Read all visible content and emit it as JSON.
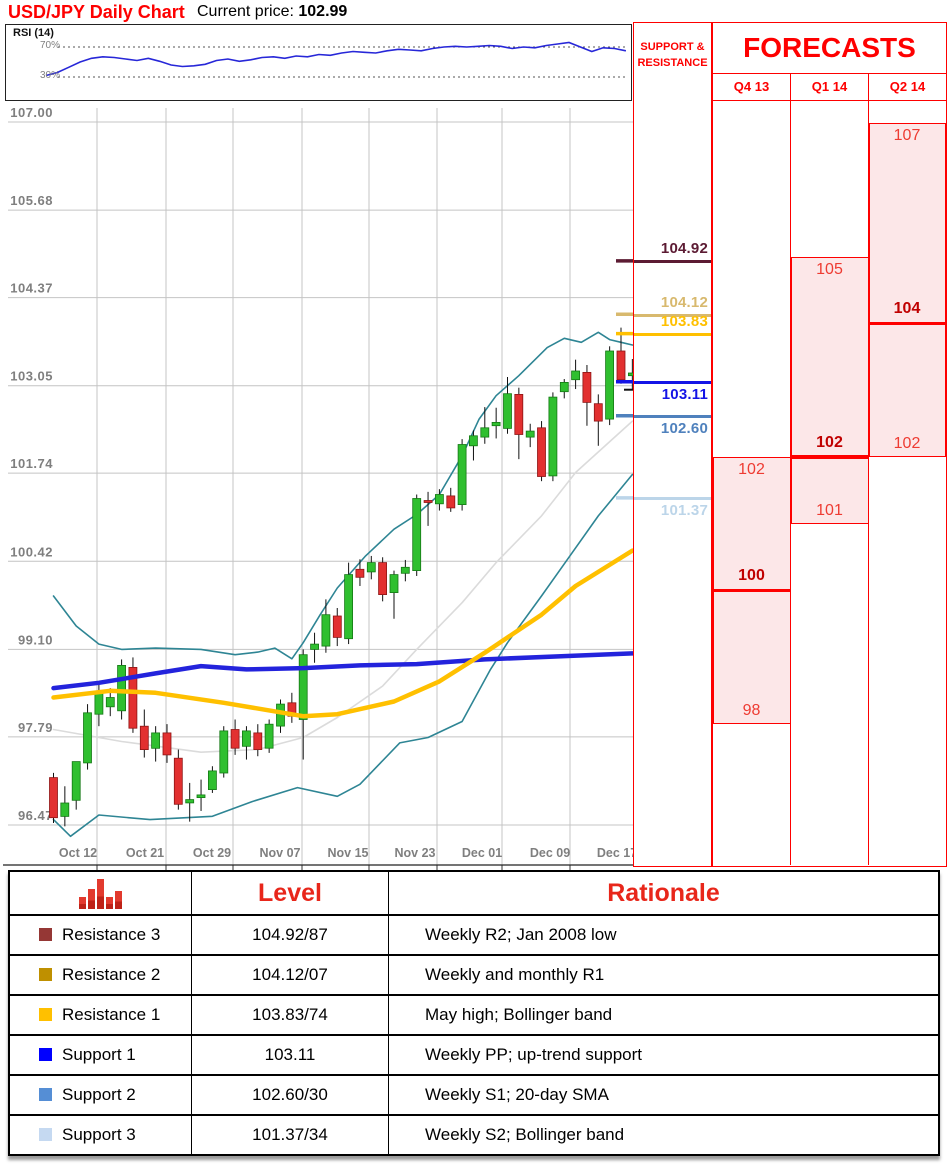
{
  "header": {
    "title": "USD/JPY Daily Chart",
    "current_price_label": "Current price:",
    "current_price": "102.99"
  },
  "chart_data": [
    {
      "type": "candlestick",
      "title": "USD/JPY Daily Chart",
      "ylim": [
        96.47,
        107.0
      ],
      "grid": true,
      "y_tick_labels": [
        "107.00",
        "105.68",
        "104.37",
        "103.05",
        "101.74",
        "100.42",
        "99.10",
        "97.79",
        "96.47"
      ],
      "y_tick_values": [
        107.0,
        105.68,
        104.37,
        103.05,
        101.74,
        100.42,
        99.1,
        97.79,
        96.47
      ],
      "x_tick_labels": [
        "Oct 12",
        "Oct 21",
        "Oct 29",
        "Nov 07",
        "Nov 15",
        "Nov 23",
        "Dec 01",
        "Dec 09",
        "Dec 17"
      ],
      "current_price": 102.99,
      "candles": [
        [
          97.18,
          97.25,
          96.5,
          96.58
        ],
        [
          96.6,
          97.05,
          96.45,
          96.8
        ],
        [
          96.84,
          97.15,
          96.7,
          97.42
        ],
        [
          97.4,
          98.28,
          97.3,
          98.15
        ],
        [
          98.13,
          98.57,
          97.95,
          98.45
        ],
        [
          98.24,
          98.52,
          98.1,
          98.38
        ],
        [
          98.18,
          98.95,
          98.05,
          98.86
        ],
        [
          98.83,
          98.98,
          97.85,
          97.92
        ],
        [
          97.95,
          98.2,
          97.48,
          97.6
        ],
        [
          97.62,
          97.95,
          97.42,
          97.85
        ],
        [
          97.85,
          97.98,
          97.4,
          97.52
        ],
        [
          97.47,
          97.6,
          96.7,
          96.78
        ],
        [
          96.8,
          97.1,
          96.52,
          96.85
        ],
        [
          96.88,
          97.15,
          96.68,
          96.92
        ],
        [
          97.0,
          97.35,
          96.95,
          97.28
        ],
        [
          97.25,
          97.95,
          97.18,
          97.88
        ],
        [
          97.9,
          98.05,
          97.52,
          97.62
        ],
        [
          97.65,
          97.95,
          97.45,
          97.88
        ],
        [
          97.85,
          97.98,
          97.5,
          97.6
        ],
        [
          97.62,
          98.05,
          97.55,
          97.98
        ],
        [
          97.95,
          98.35,
          97.85,
          98.28
        ],
        [
          98.3,
          98.45,
          98.0,
          98.1
        ],
        [
          98.05,
          99.1,
          97.45,
          99.02
        ],
        [
          99.1,
          99.35,
          98.9,
          99.18
        ],
        [
          99.15,
          99.85,
          99.05,
          99.62
        ],
        [
          99.6,
          99.72,
          99.15,
          99.28
        ],
        [
          99.26,
          100.4,
          99.18,
          100.22
        ],
        [
          100.3,
          100.45,
          100.05,
          100.18
        ],
        [
          100.26,
          100.5,
          100.15,
          100.4
        ],
        [
          100.4,
          100.48,
          99.82,
          99.92
        ],
        [
          99.95,
          100.28,
          99.56,
          100.22
        ],
        [
          100.24,
          100.44,
          100.12,
          100.33
        ],
        [
          100.28,
          101.42,
          100.2,
          101.36
        ],
        [
          101.33,
          101.46,
          100.95,
          101.3
        ],
        [
          101.28,
          101.5,
          101.18,
          101.42
        ],
        [
          101.4,
          101.52,
          101.16,
          101.22
        ],
        [
          101.27,
          102.25,
          101.18,
          102.17
        ],
        [
          102.15,
          102.38,
          101.93,
          102.3
        ],
        [
          102.28,
          102.73,
          102.18,
          102.42
        ],
        [
          102.45,
          102.72,
          102.26,
          102.5
        ],
        [
          102.41,
          103.18,
          102.33,
          102.93
        ],
        [
          102.92,
          103.02,
          101.95,
          102.32
        ],
        [
          102.28,
          102.48,
          102.13,
          102.37
        ],
        [
          102.42,
          102.52,
          101.62,
          101.69
        ],
        [
          101.7,
          102.95,
          101.62,
          102.88
        ],
        [
          102.96,
          103.15,
          102.86,
          103.1
        ],
        [
          103.14,
          103.44,
          103.0,
          103.27
        ],
        [
          103.25,
          103.36,
          102.45,
          102.8
        ],
        [
          102.78,
          102.92,
          102.15,
          102.52
        ],
        [
          102.55,
          103.64,
          102.46,
          103.57
        ],
        [
          103.57,
          103.92,
          103.08,
          103.14
        ],
        [
          103.2,
          103.45,
          102.98,
          103.24
        ],
        [
          103.25,
          103.32,
          102.6,
          102.99
        ]
      ],
      "candle_colors": {
        "up": "#2FBF2F",
        "up_stroke": "#147814",
        "down": "#E23030",
        "down_stroke": "#8E1414"
      },
      "overlays": [
        {
          "name": "ma-blue",
          "color": "#2323DC",
          "width": 4.5,
          "points": [
            [
              0,
              98.52
            ],
            [
              4,
              98.6
            ],
            [
              9,
              98.74
            ],
            [
              13,
              98.85
            ],
            [
              17,
              98.8
            ],
            [
              22,
              98.82
            ],
            [
              27,
              98.86
            ],
            [
              32,
              98.88
            ],
            [
              38,
              98.95
            ],
            [
              45,
              99.0
            ],
            [
              51,
              99.04
            ]
          ]
        },
        {
          "name": "ma-yellow",
          "color": "#FFC000",
          "width": 4.5,
          "points": [
            [
              0,
              98.38
            ],
            [
              5,
              98.48
            ],
            [
              9,
              98.45
            ],
            [
              15,
              98.3
            ],
            [
              22,
              98.1
            ],
            [
              25,
              98.13
            ],
            [
              30,
              98.32
            ],
            [
              34,
              98.62
            ],
            [
              38,
              99.05
            ],
            [
              43,
              99.62
            ],
            [
              46,
              100.05
            ],
            [
              51,
              100.58
            ]
          ]
        },
        {
          "name": "sma20-gray",
          "color": "#DBDBDB",
          "width": 1.6,
          "points": [
            [
              0,
              97.9
            ],
            [
              6,
              97.72
            ],
            [
              13,
              97.56
            ],
            [
              18,
              97.6
            ],
            [
              22,
              97.78
            ],
            [
              25,
              98.08
            ],
            [
              29,
              98.55
            ],
            [
              32,
              99.1
            ],
            [
              36,
              99.8
            ],
            [
              39,
              100.4
            ],
            [
              43,
              101.1
            ],
            [
              46,
              101.75
            ],
            [
              51,
              102.52
            ]
          ]
        },
        {
          "name": "bollinger-upper",
          "color": "#2E8594",
          "width": 1.6,
          "points": [
            [
              0,
              99.9
            ],
            [
              2,
              99.45
            ],
            [
              4,
              99.18
            ],
            [
              6,
              99.1
            ],
            [
              9,
              99.12
            ],
            [
              13,
              99.1
            ],
            [
              16,
              99.02
            ],
            [
              18,
              99.06
            ],
            [
              19.5,
              99.12
            ],
            [
              21,
              98.96
            ],
            [
              22,
              99.2
            ],
            [
              23.5,
              99.62
            ],
            [
              25,
              100.02
            ],
            [
              27.5,
              100.5
            ],
            [
              30,
              100.9
            ],
            [
              32,
              101.12
            ],
            [
              34,
              101.42
            ],
            [
              36,
              102.0
            ],
            [
              37.5,
              102.55
            ],
            [
              39,
              102.9
            ],
            [
              41,
              103.2
            ],
            [
              43.5,
              103.62
            ],
            [
              45,
              103.76
            ],
            [
              46.5,
              103.7
            ],
            [
              48,
              103.85
            ],
            [
              49,
              103.74
            ],
            [
              50,
              103.7
            ],
            [
              51,
              103.66
            ]
          ]
        },
        {
          "name": "bollinger-lower",
          "color": "#2E8594",
          "width": 1.6,
          "points": [
            [
              0,
              96.55
            ],
            [
              1.5,
              96.3
            ],
            [
              4,
              96.62
            ],
            [
              8.5,
              96.55
            ],
            [
              14,
              96.6
            ],
            [
              17.5,
              96.82
            ],
            [
              21.5,
              97.03
            ],
            [
              25,
              96.9
            ],
            [
              27,
              97.08
            ],
            [
              30.5,
              97.7
            ],
            [
              33,
              97.78
            ],
            [
              36,
              98.02
            ],
            [
              38.5,
              98.8
            ],
            [
              40,
              99.2
            ],
            [
              43,
              99.9
            ],
            [
              45.5,
              100.5
            ],
            [
              48,
              101.1
            ],
            [
              51,
              101.72
            ]
          ]
        }
      ]
    },
    {
      "type": "line",
      "title": "RSI (14)",
      "upper_gridline_label": "70%",
      "lower_gridline_label": "30%",
      "upper_gridline": 70,
      "lower_gridline": 30,
      "ylim": [
        0,
        100
      ],
      "color": "#2727D8",
      "values": [
        32,
        36,
        43,
        50,
        55,
        57,
        56,
        54,
        52,
        55,
        51,
        46,
        44,
        45,
        47,
        52,
        54,
        51,
        53,
        56,
        57,
        55,
        58,
        57,
        60,
        59,
        62,
        64,
        63,
        62,
        65,
        67,
        66,
        65,
        68,
        70,
        71,
        70,
        71,
        72,
        71,
        68,
        70,
        69,
        72,
        74,
        76,
        70,
        64,
        69,
        68,
        65
      ]
    }
  ],
  "sr_panel": {
    "title": "SUPPORT & RESISTANCE",
    "levels": [
      {
        "label": "104.92",
        "price": 104.92,
        "color": "#5C1B33",
        "side": "above"
      },
      {
        "label": "104.12",
        "price": 104.12,
        "color": "#D8B96E",
        "side": "above"
      },
      {
        "label": "103.83",
        "price": 103.83,
        "color": "#FFC000",
        "side": "above"
      },
      {
        "label": "103.11",
        "price": 103.11,
        "color": "#1414E6",
        "side": "below"
      },
      {
        "label": "102.60",
        "price": 102.6,
        "color": "#4F81BD",
        "side": "below"
      },
      {
        "label": "101.37",
        "price": 101.37,
        "color": "#BCD5E9",
        "side": "below"
      }
    ]
  },
  "forecasts": {
    "title": "FORECASTS",
    "columns": [
      {
        "quarter": "Q4 13",
        "high": 102,
        "low": 98,
        "central": 100
      },
      {
        "quarter": "Q1 14",
        "high": 105,
        "low": 101,
        "central": 102
      },
      {
        "quarter": "Q2 14",
        "high": 107,
        "low": 102,
        "central": 104
      }
    ],
    "range_fill": "#FCE7E8",
    "line_color": "#FE0000"
  },
  "table": {
    "level_header": "Level",
    "rationale_header": "Rationale",
    "rows": [
      {
        "name": "Resistance 3",
        "swatch": "#953735",
        "level": "104.92/87",
        "rationale": "Weekly R2; Jan 2008 low"
      },
      {
        "name": "Resistance 2",
        "swatch": "#BF9000",
        "level": "104.12/07",
        "rationale": "Weekly and monthly R1"
      },
      {
        "name": "Resistance 1",
        "swatch": "#FFC000",
        "level": "103.83/74",
        "rationale": "May high; Bollinger band"
      },
      {
        "name": "Support 1",
        "swatch": "#0000FF",
        "level": "103.11",
        "rationale": "Weekly PP; up-trend support"
      },
      {
        "name": "Support 2",
        "swatch": "#558ED5",
        "level": "102.60/30",
        "rationale": "Weekly S1; 20-day SMA"
      },
      {
        "name": "Support 3",
        "swatch": "#C5D9F1",
        "level": "101.37/34",
        "rationale": "Weekly S2; Bollinger band"
      }
    ]
  }
}
